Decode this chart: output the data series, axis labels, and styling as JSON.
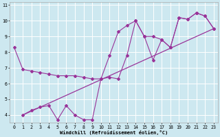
{
  "xlabel": "Windchill (Refroidissement éolien,°C)",
  "bg_color": "#cde8f0",
  "line_color": "#993399",
  "line1_x": [
    0,
    1,
    2,
    3,
    4,
    5,
    6,
    7,
    8,
    9,
    10,
    11,
    12,
    13,
    14,
    15,
    16,
    17,
    18,
    19,
    20,
    21,
    22,
    23
  ],
  "line1_y": [
    8.3,
    6.9,
    6.8,
    6.7,
    6.6,
    6.5,
    6.5,
    6.5,
    6.4,
    6.3,
    6.3,
    7.8,
    9.3,
    9.7,
    10.0,
    9.0,
    7.5,
    8.8,
    8.3,
    10.2,
    10.1,
    10.5,
    10.3,
    9.5
  ],
  "line2_x": [
    1,
    2,
    3,
    4,
    5,
    6,
    7,
    8,
    9,
    10,
    11,
    12,
    13,
    14,
    15,
    16,
    17,
    18,
    19,
    20,
    21,
    22,
    23
  ],
  "line2_y": [
    4.0,
    4.3,
    4.5,
    4.6,
    3.7,
    4.6,
    4.0,
    3.7,
    3.7,
    6.3,
    6.4,
    6.3,
    7.8,
    10.0,
    9.0,
    9.0,
    8.8,
    8.3,
    10.2,
    10.1,
    10.5,
    10.3,
    9.5
  ],
  "line3_x": [
    1,
    23
  ],
  "line3_y": [
    4.0,
    9.5
  ],
  "xlim": [
    -0.5,
    23.5
  ],
  "ylim": [
    3.5,
    11.2
  ],
  "yticks": [
    4,
    5,
    6,
    7,
    8,
    9,
    10,
    11
  ],
  "xticks": [
    0,
    1,
    2,
    3,
    4,
    5,
    6,
    7,
    8,
    9,
    10,
    11,
    12,
    13,
    14,
    15,
    16,
    17,
    18,
    19,
    20,
    21,
    22,
    23
  ]
}
